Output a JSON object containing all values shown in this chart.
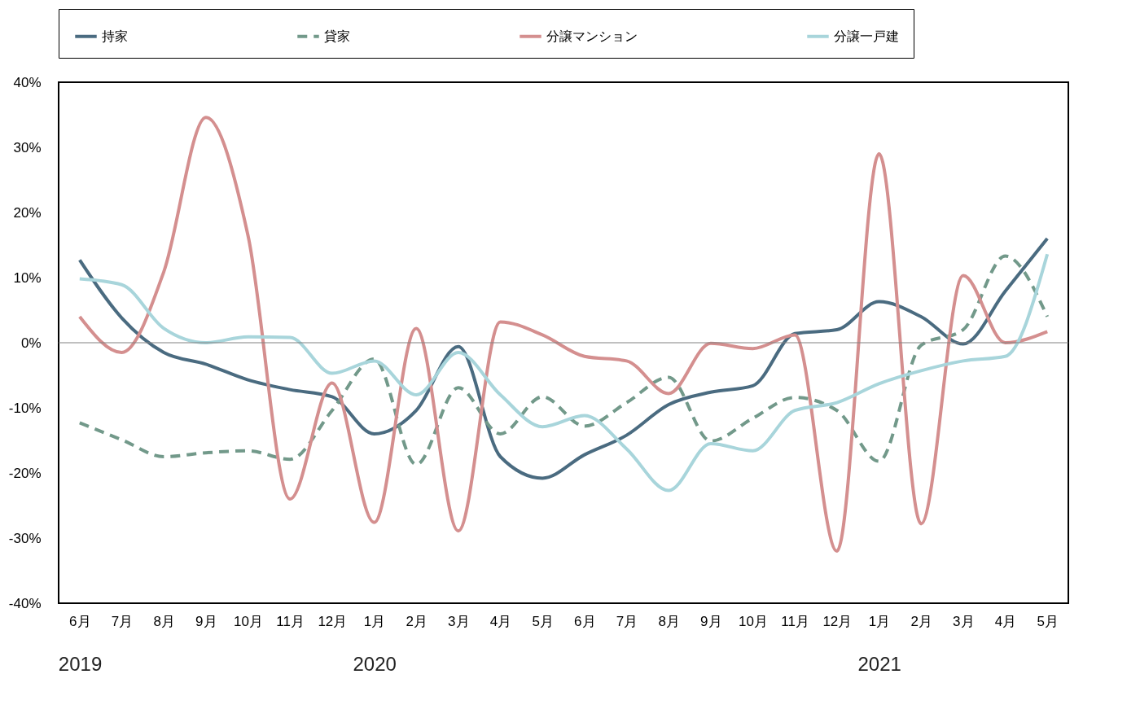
{
  "chart_data": {
    "type": "line",
    "categories": [
      "6月",
      "7月",
      "8月",
      "9月",
      "10月",
      "11月",
      "12月",
      "1月",
      "2月",
      "3月",
      "4月",
      "5月",
      "6月",
      "7月",
      "8月",
      "9月",
      "10月",
      "11月",
      "12月",
      "1月",
      "2月",
      "3月",
      "4月",
      "5月"
    ],
    "series": [
      {
        "name": "持家",
        "color": "#4a6b80",
        "line_style": "solid",
        "values": [
          12.7,
          3.8,
          -1.5,
          -3.3,
          -5.7,
          -7.2,
          -8.3,
          -14,
          -10.4,
          -0.6,
          -17.5,
          -20.8,
          -17.2,
          -14.2,
          -9.5,
          -7.6,
          -6.6,
          1.4,
          2,
          6.3,
          4,
          -0.2,
          7.9,
          16
        ]
      },
      {
        "name": "貸家",
        "color": "#72998a",
        "line_style": "dashed",
        "values": [
          -12.3,
          -14.9,
          -17.5,
          -16.9,
          -16.6,
          -17.9,
          -10.4,
          -2.5,
          -18.7,
          -6.9,
          -14,
          -8.3,
          -12.8,
          -9.2,
          -5.3,
          -15.1,
          -11.6,
          -8.4,
          -10.4,
          -18.2,
          -0.4,
          2,
          13.3,
          4
        ]
      },
      {
        "name": "分譲マンション",
        "color": "#d48f8f",
        "line_style": "solid",
        "values": [
          4,
          -1.5,
          10.9,
          34.6,
          16.5,
          -24,
          -6.2,
          -27.6,
          2.2,
          -28.9,
          3.2,
          1.2,
          -2.1,
          -2.8,
          -7.8,
          -0.1,
          -0.9,
          1.2,
          -32,
          29,
          -27.8,
          10.3,
          0,
          1.7
        ]
      },
      {
        "name": "分譲一戸建",
        "color": "#a8d5db",
        "line_style": "solid",
        "values": [
          9.8,
          8.9,
          2.2,
          0,
          0.9,
          0.8,
          -4.7,
          -2.8,
          -8,
          -1.5,
          -8,
          -12.9,
          -11.2,
          -16.3,
          -22.7,
          -15.5,
          -16.6,
          -10.4,
          -9.2,
          -6.3,
          -4.3,
          -2.8,
          -2.1,
          13.6
        ]
      }
    ],
    "ylim": [
      -40,
      40
    ],
    "yticks": [
      {
        "value": -40,
        "label": "-40%"
      },
      {
        "value": -30,
        "label": "-30%"
      },
      {
        "value": -20,
        "label": "-20%"
      },
      {
        "value": -10,
        "label": "-10%"
      },
      {
        "value": 0,
        "label": "0%"
      },
      {
        "value": 10,
        "label": "10%"
      },
      {
        "value": 20,
        "label": "20%"
      },
      {
        "value": 30,
        "label": "30%"
      },
      {
        "value": 40,
        "label": "40%"
      }
    ],
    "ref_lines": [
      {
        "axis": "y",
        "value": 0,
        "color": "#808080"
      }
    ],
    "annotations": [
      "2019",
      "2020",
      "2021"
    ],
    "grid": false,
    "legend": "top"
  }
}
